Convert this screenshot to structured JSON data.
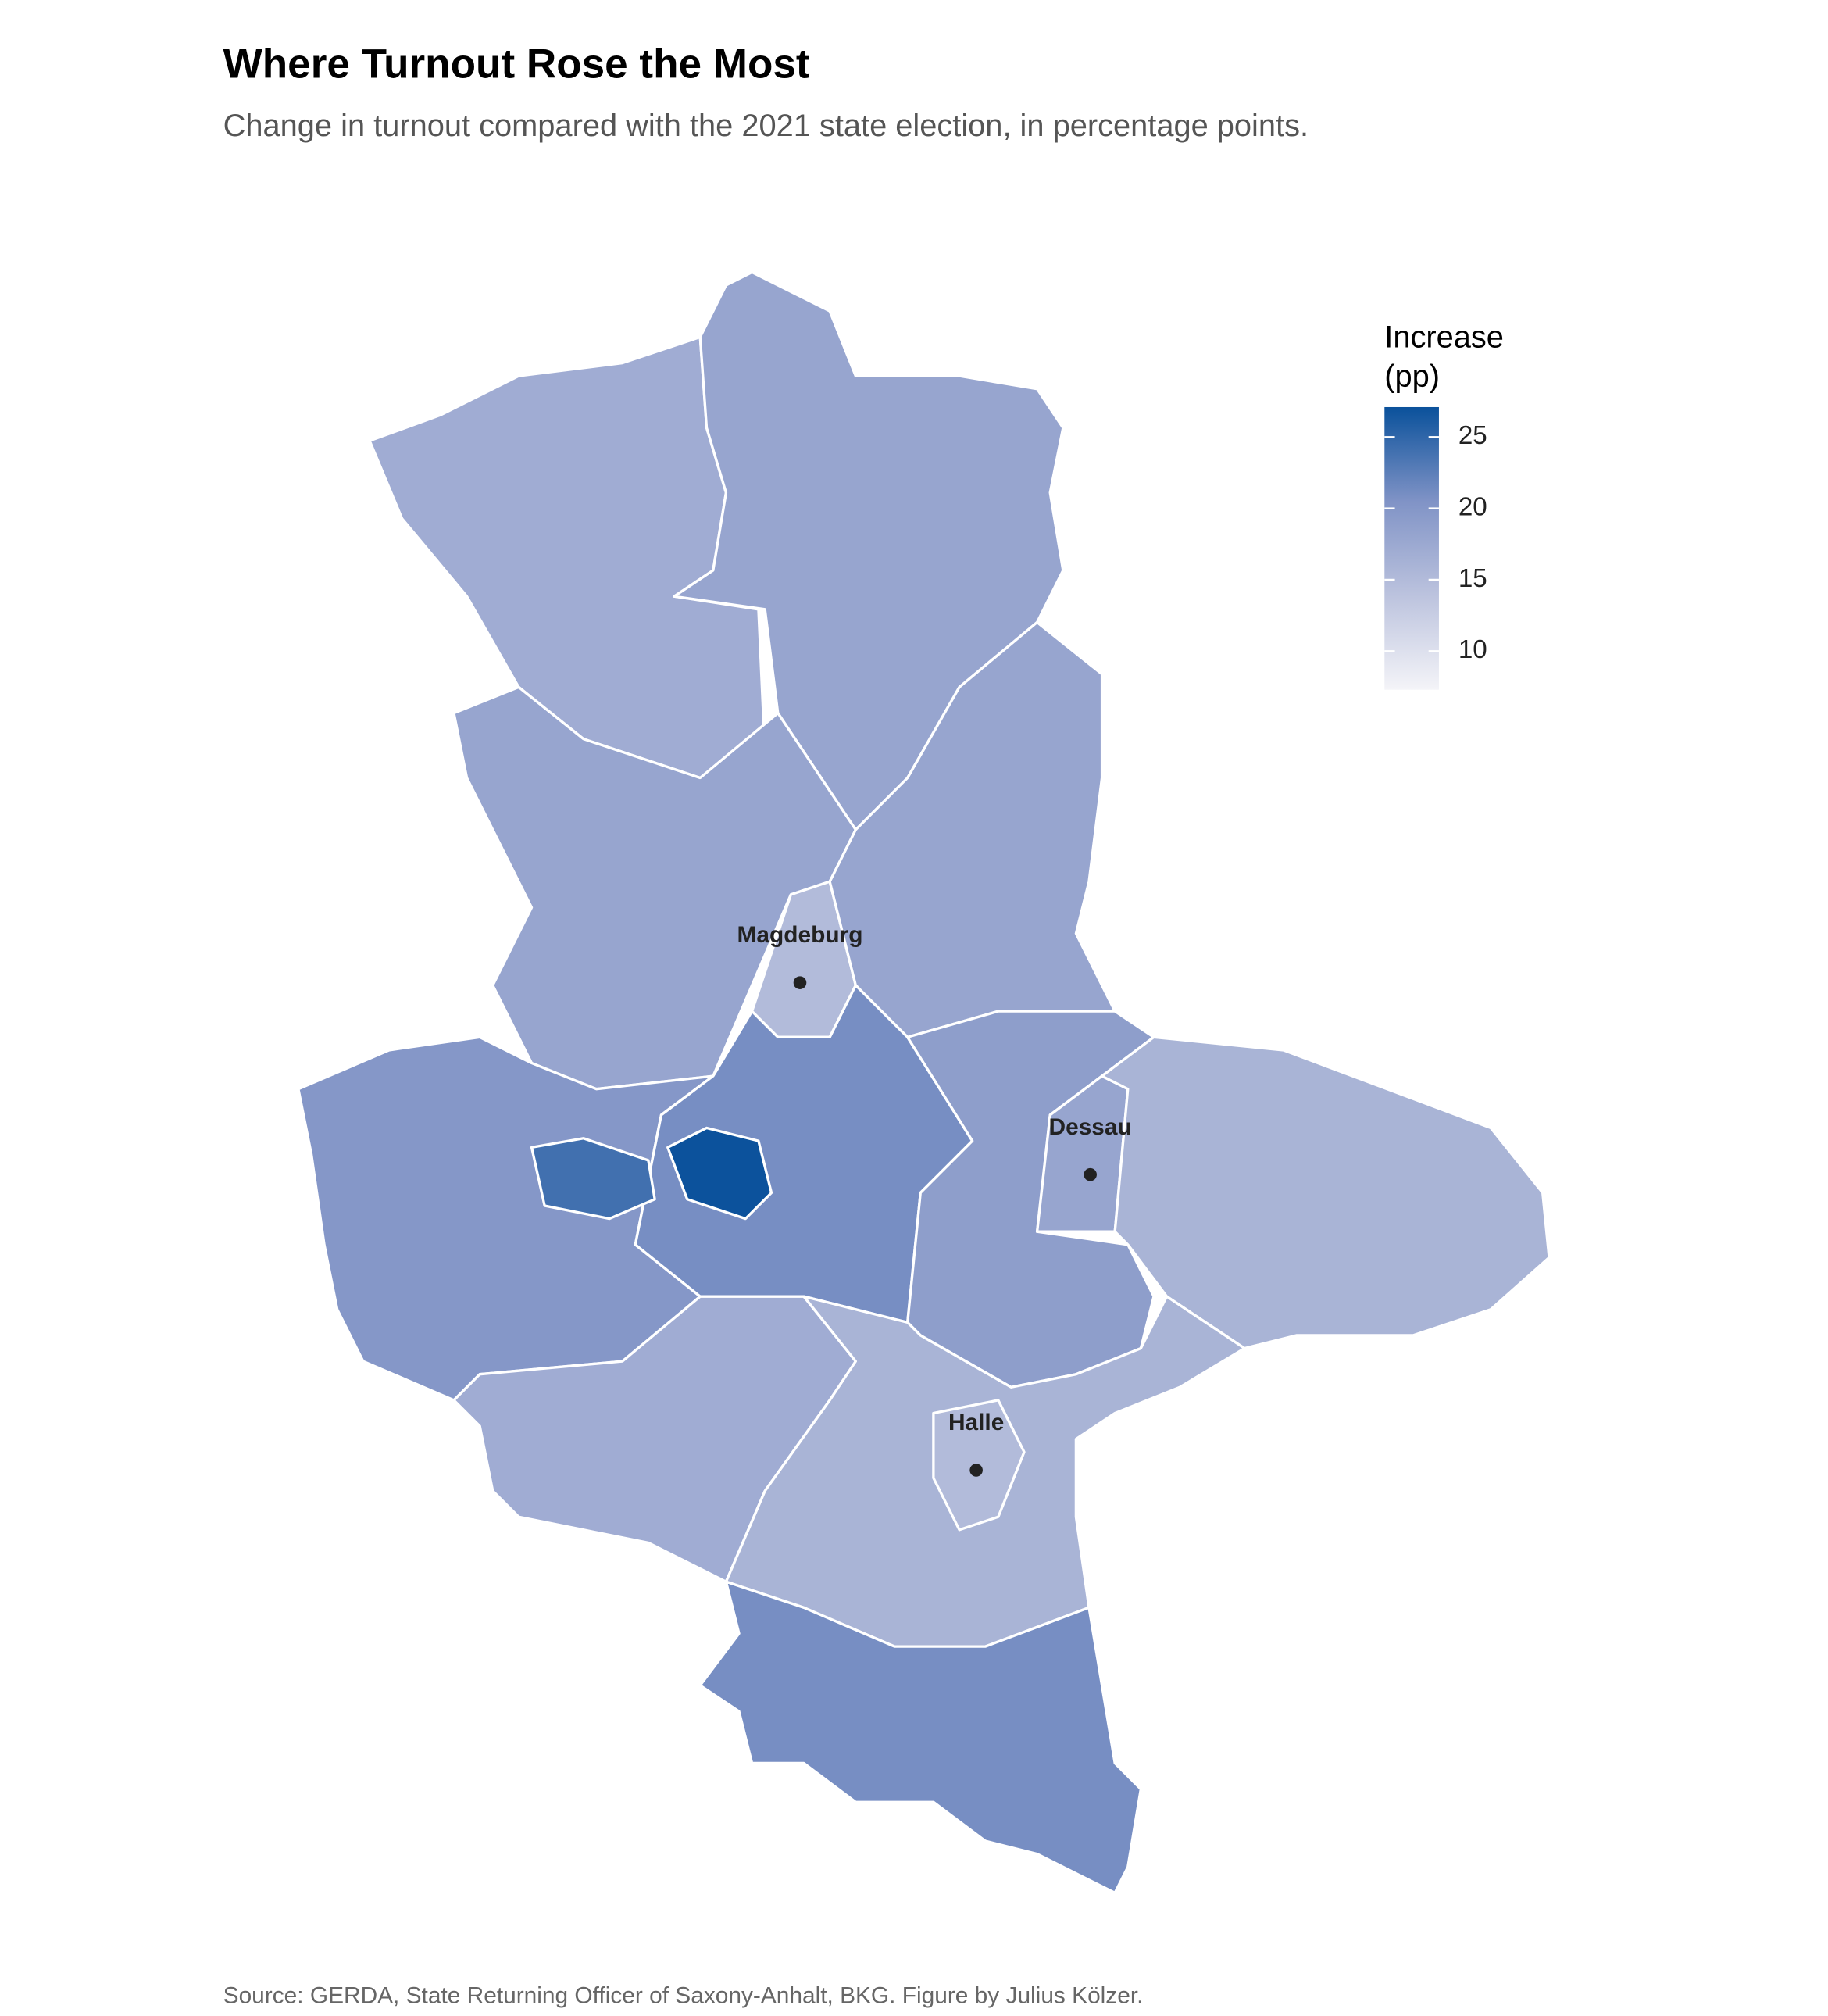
{
  "title": "Where Turnout Rose the Most",
  "subtitle": "Change in turnout compared with the 2021 state election, in percentage points.",
  "source": "Source: GERDA, State Returning Officer of Saxony-Anhalt, BKG. Figure by Julius Kölzer.",
  "map": {
    "type": "choropleth",
    "values": [
      17,
      18,
      18,
      15,
      18,
      20,
      21,
      19,
      18,
      16,
      17,
      16,
      15,
      21,
      27,
      24
    ],
    "colors": [
      "#f4f4f8",
      "#bcc3de",
      "#8093c6",
      "#0a519b"
    ],
    "legend": {
      "title": [
        "Increase",
        "(pp)"
      ],
      "lim": [
        7.3,
        27.1
      ],
      "ticks": [
        10,
        15,
        20,
        25
      ]
    },
    "cities": [
      {
        "name": "Magdeburg"
      },
      {
        "name": "Dessau"
      },
      {
        "name": "Halle"
      }
    ]
  }
}
